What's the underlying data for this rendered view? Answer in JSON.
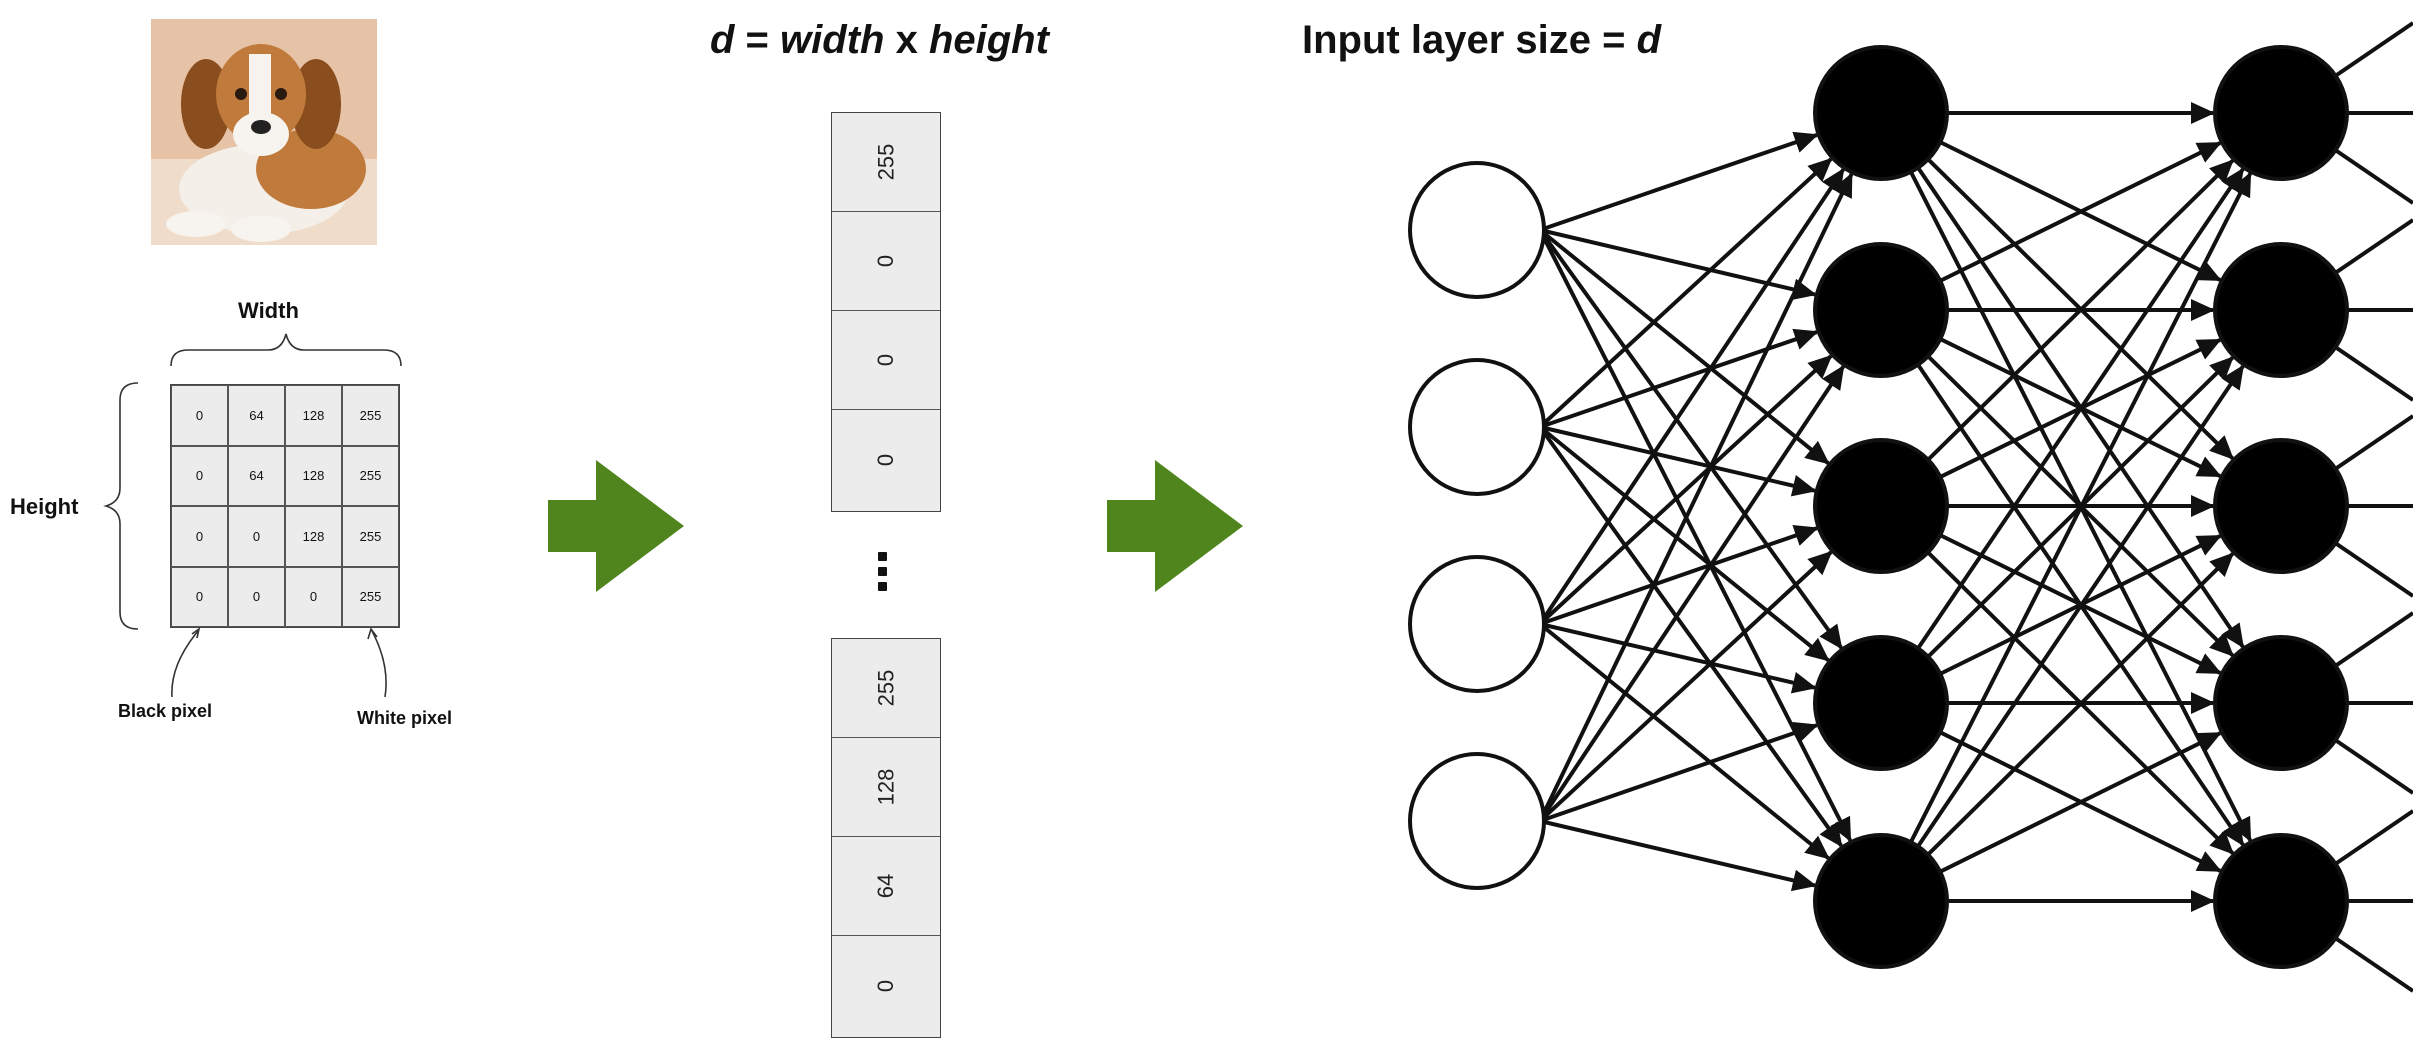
{
  "labels": {
    "width": "Width",
    "height": "Height",
    "black_pixel": "Black pixel",
    "white_pixel": "White pixel"
  },
  "pixel_grid": [
    [
      "0",
      "64",
      "128",
      "255"
    ],
    [
      "0",
      "64",
      "128",
      "255"
    ],
    [
      "0",
      "0",
      "128",
      "255"
    ],
    [
      "0",
      "0",
      "0",
      "255"
    ]
  ],
  "vector_title": {
    "d": "d",
    "eq": " = ",
    "width": "width",
    "x": " x ",
    "height": "height"
  },
  "vector_top": [
    "255",
    "0",
    "0",
    "0"
  ],
  "vector_bottom": [
    "255",
    "128",
    "64",
    "0"
  ],
  "input_title": {
    "text": "Input layer size = ",
    "d": "d"
  },
  "network": {
    "input_nodes": 4,
    "hidden_nodes_per_layer": 5,
    "hidden_layers_visible": 2
  },
  "colors": {
    "arrow_green": "#4f851c",
    "node_fill": "#000000",
    "cell_fill": "#ececec"
  },
  "icons": [
    "dog-photo",
    "right-arrow-icon"
  ]
}
